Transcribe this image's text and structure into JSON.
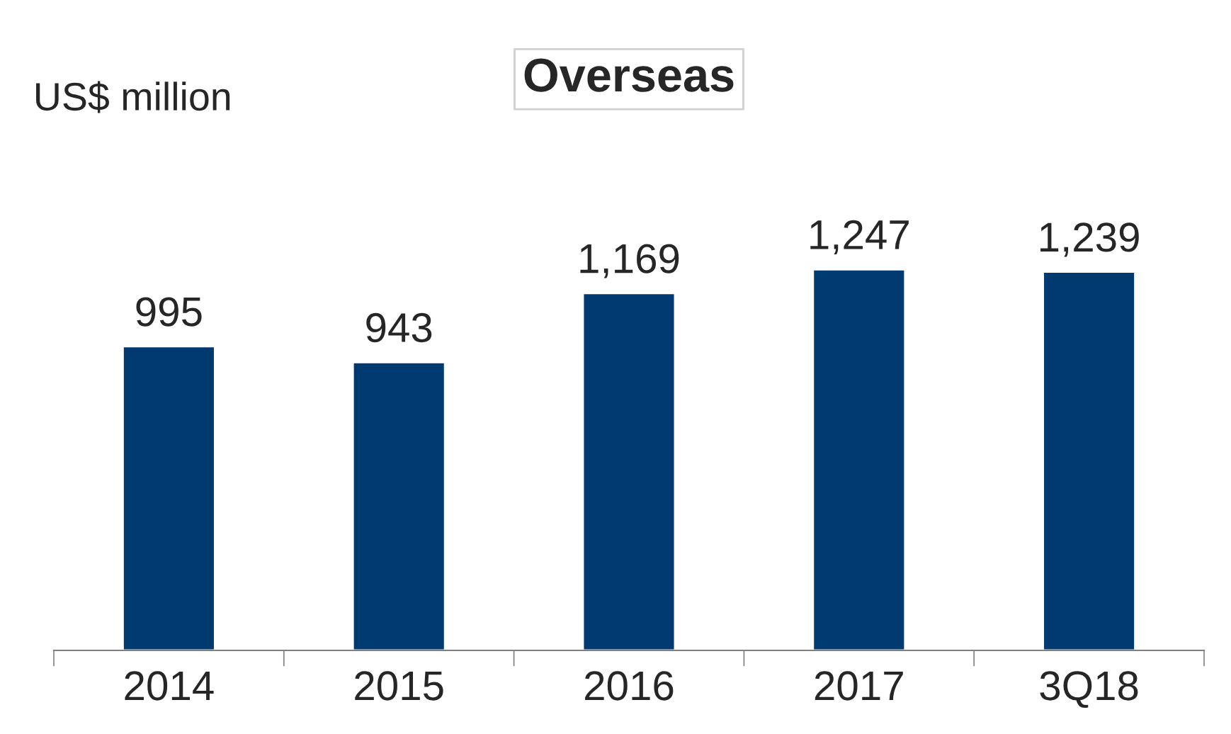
{
  "chart_data": {
    "type": "bar",
    "title": "Overseas",
    "ylabel": "US$ million",
    "categories": [
      "2014",
      "2015",
      "2016",
      "2017",
      "3Q18"
    ],
    "values": [
      995,
      943,
      1169,
      1247,
      1239
    ],
    "value_labels": [
      "995",
      "943",
      "1,169",
      "1,247",
      "1,239"
    ],
    "color": "#003a70",
    "grid": false,
    "legend": false
  }
}
